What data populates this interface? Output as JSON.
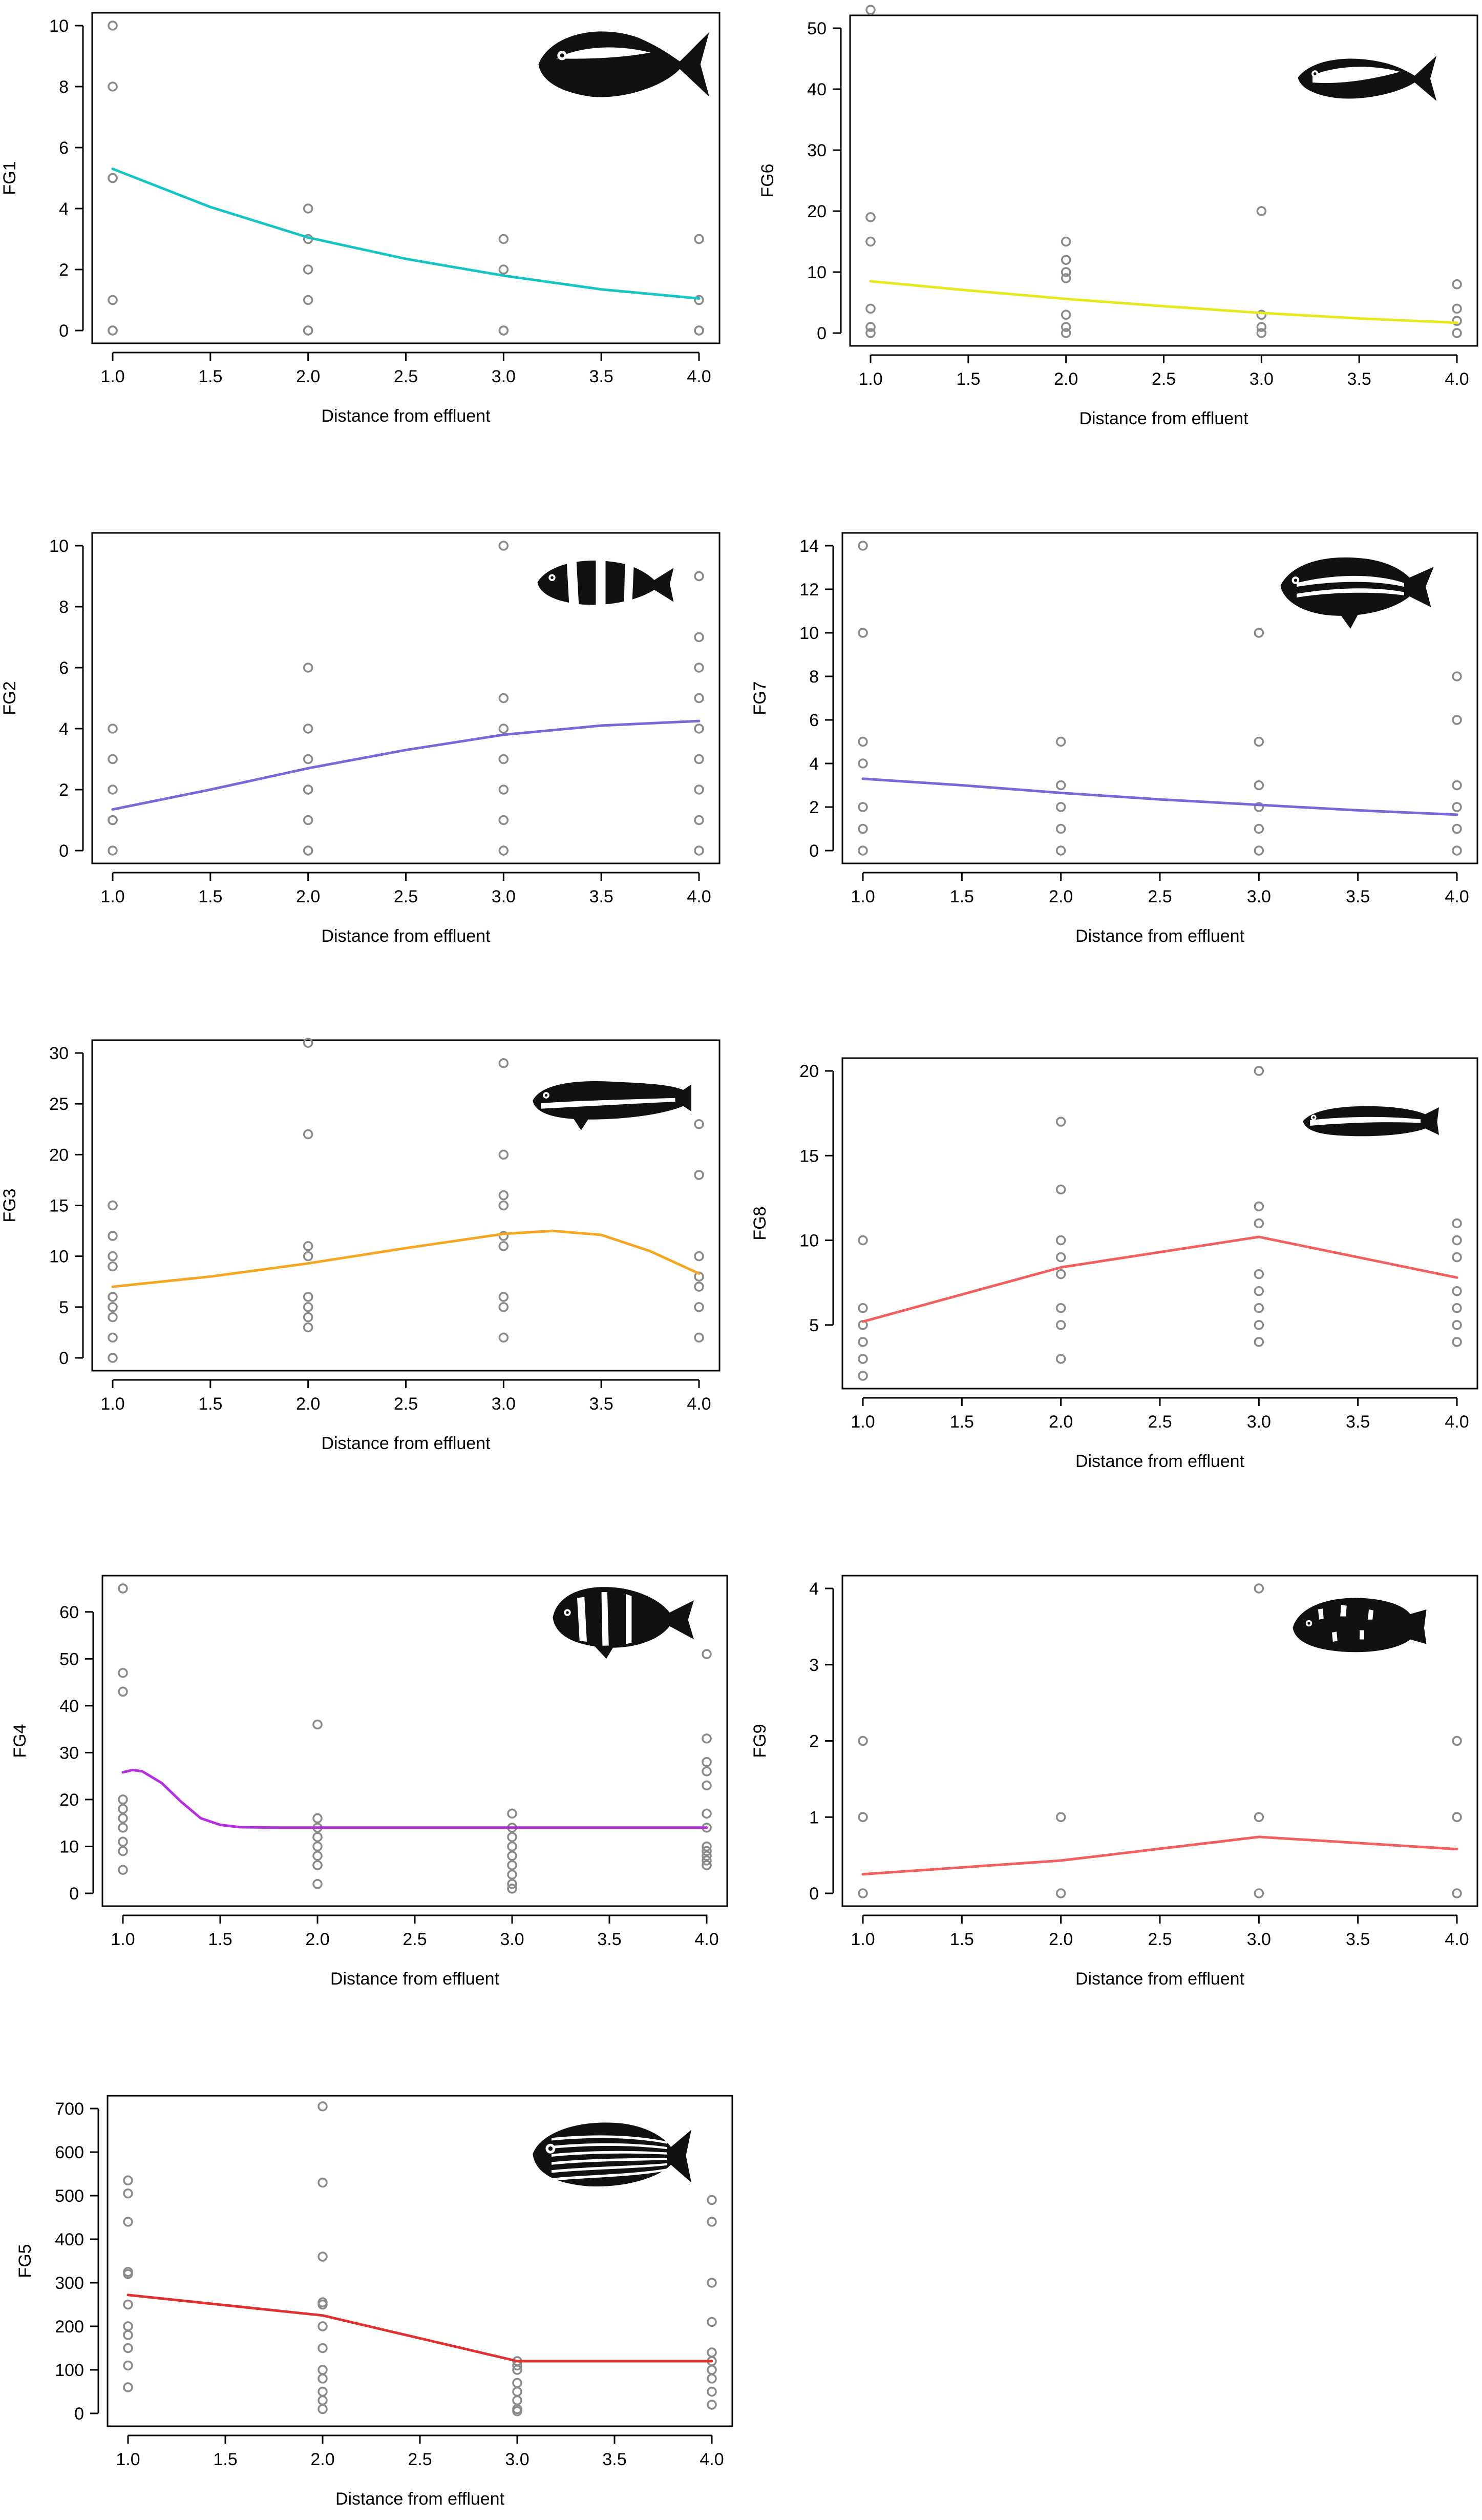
{
  "chart_data": [
    {
      "id": "FG1",
      "type": "scatter",
      "title": "",
      "xlabel": "Distance from effluent",
      "ylabel": "FG1",
      "xlim": [
        1,
        4
      ],
      "ylim": [
        0,
        10
      ],
      "xticks": [
        1.0,
        1.5,
        2.0,
        2.5,
        3.0,
        3.5,
        4.0
      ],
      "yticks": [
        0,
        2,
        4,
        6,
        8,
        10
      ],
      "points": [
        [
          1,
          10
        ],
        [
          1,
          8
        ],
        [
          1,
          5
        ],
        [
          1,
          5
        ],
        [
          1,
          1
        ],
        [
          1,
          0
        ],
        [
          1,
          0
        ],
        [
          2,
          4
        ],
        [
          2,
          3
        ],
        [
          2,
          2
        ],
        [
          2,
          1
        ],
        [
          2,
          0
        ],
        [
          2,
          0
        ],
        [
          3,
          3
        ],
        [
          3,
          2
        ],
        [
          3,
          0
        ],
        [
          3,
          0
        ],
        [
          4,
          3
        ],
        [
          4,
          1
        ],
        [
          4,
          0
        ],
        [
          4,
          0
        ]
      ],
      "fit": {
        "x": [
          1.0,
          1.5,
          2.0,
          2.5,
          3.0,
          3.5,
          4.0
        ],
        "y": [
          5.3,
          4.05,
          3.05,
          2.35,
          1.8,
          1.35,
          1.05
        ]
      },
      "fit_color": "#17c4c4",
      "fish": "jack"
    },
    {
      "id": "FG6",
      "type": "scatter",
      "title": "",
      "xlabel": "Distance from effluent",
      "ylabel": "FG6",
      "xlim": [
        1,
        4
      ],
      "ylim": [
        0,
        50
      ],
      "xticks": [
        1.0,
        1.5,
        2.0,
        2.5,
        3.0,
        3.5,
        4.0
      ],
      "yticks": [
        0,
        10,
        20,
        30,
        40,
        50
      ],
      "points": [
        [
          1,
          53
        ],
        [
          1,
          19
        ],
        [
          1,
          15
        ],
        [
          1,
          4
        ],
        [
          1,
          1
        ],
        [
          1,
          0
        ],
        [
          2,
          15
        ],
        [
          2,
          12
        ],
        [
          2,
          10
        ],
        [
          2,
          9
        ],
        [
          2,
          3
        ],
        [
          2,
          1
        ],
        [
          2,
          0
        ],
        [
          3,
          20
        ],
        [
          3,
          3
        ],
        [
          3,
          1
        ],
        [
          3,
          0
        ],
        [
          4,
          8
        ],
        [
          4,
          4
        ],
        [
          4,
          2
        ],
        [
          4,
          0
        ]
      ],
      "fit": {
        "x": [
          1.0,
          1.5,
          2.0,
          2.5,
          3.0,
          3.5,
          4.0
        ],
        "y": [
          8.5,
          7.0,
          5.6,
          4.4,
          3.3,
          2.4,
          1.7
        ]
      },
      "fit_color": "#e8e820",
      "fish": "bream"
    },
    {
      "id": "FG2",
      "type": "scatter",
      "title": "",
      "xlabel": "Distance from effluent",
      "ylabel": "FG2",
      "xlim": [
        1,
        4
      ],
      "ylim": [
        0,
        10
      ],
      "xticks": [
        1.0,
        1.5,
        2.0,
        2.5,
        3.0,
        3.5,
        4.0
      ],
      "yticks": [
        0,
        2,
        4,
        6,
        8,
        10
      ],
      "points": [
        [
          1,
          4
        ],
        [
          1,
          3
        ],
        [
          1,
          2
        ],
        [
          1,
          1
        ],
        [
          1,
          1
        ],
        [
          1,
          0
        ],
        [
          2,
          6
        ],
        [
          2,
          4
        ],
        [
          2,
          3
        ],
        [
          2,
          2
        ],
        [
          2,
          2
        ],
        [
          2,
          1
        ],
        [
          2,
          0
        ],
        [
          3,
          10
        ],
        [
          3,
          5
        ],
        [
          3,
          4
        ],
        [
          3,
          3
        ],
        [
          3,
          2
        ],
        [
          3,
          1
        ],
        [
          3,
          0
        ],
        [
          4,
          9
        ],
        [
          4,
          7
        ],
        [
          4,
          6
        ],
        [
          4,
          5
        ],
        [
          4,
          4
        ],
        [
          4,
          3
        ],
        [
          4,
          2
        ],
        [
          4,
          1
        ],
        [
          4,
          0
        ]
      ],
      "fit": {
        "x": [
          1.0,
          1.5,
          2.0,
          2.5,
          3.0,
          3.5,
          4.0
        ],
        "y": [
          1.35,
          2.0,
          2.7,
          3.3,
          3.8,
          4.1,
          4.25
        ]
      },
      "fit_color": "#7b68d8",
      "fish": "banded"
    },
    {
      "id": "FG7",
      "type": "scatter",
      "title": "",
      "xlabel": "Distance from effluent",
      "ylabel": "FG7",
      "xlim": [
        1,
        4
      ],
      "ylim": [
        0,
        14
      ],
      "xticks": [
        1.0,
        1.5,
        2.0,
        2.5,
        3.0,
        3.5,
        4.0
      ],
      "yticks": [
        0,
        2,
        4,
        6,
        8,
        10,
        12,
        14
      ],
      "points": [
        [
          1,
          14
        ],
        [
          1,
          10
        ],
        [
          1,
          5
        ],
        [
          1,
          4
        ],
        [
          1,
          2
        ],
        [
          1,
          1
        ],
        [
          1,
          0
        ],
        [
          2,
          5
        ],
        [
          2,
          3
        ],
        [
          2,
          2
        ],
        [
          2,
          1
        ],
        [
          2,
          0
        ],
        [
          3,
          10
        ],
        [
          3,
          5
        ],
        [
          3,
          3
        ],
        [
          3,
          2
        ],
        [
          3,
          1
        ],
        [
          3,
          0
        ],
        [
          4,
          8
        ],
        [
          4,
          6
        ],
        [
          4,
          3
        ],
        [
          4,
          2
        ],
        [
          4,
          1
        ],
        [
          4,
          0
        ]
      ],
      "fit": {
        "x": [
          1.0,
          1.5,
          2.0,
          2.5,
          3.0,
          3.5,
          4.0
        ],
        "y": [
          3.3,
          3.0,
          2.65,
          2.35,
          2.1,
          1.85,
          1.65
        ]
      },
      "fit_color": "#7b68d8",
      "fish": "snapper"
    },
    {
      "id": "FG3",
      "type": "scatter",
      "title": "",
      "xlabel": "Distance from effluent",
      "ylabel": "FG3",
      "xlim": [
        1,
        4
      ],
      "ylim": [
        0,
        30
      ],
      "xticks": [
        1.0,
        1.5,
        2.0,
        2.5,
        3.0,
        3.5,
        4.0
      ],
      "yticks": [
        0,
        5,
        10,
        15,
        20,
        25,
        30
      ],
      "points": [
        [
          1,
          15
        ],
        [
          1,
          12
        ],
        [
          1,
          10
        ],
        [
          1,
          9
        ],
        [
          1,
          6
        ],
        [
          1,
          5
        ],
        [
          1,
          4
        ],
        [
          1,
          2
        ],
        [
          1,
          0
        ],
        [
          2,
          31
        ],
        [
          2,
          22
        ],
        [
          2,
          11
        ],
        [
          2,
          10
        ],
        [
          2,
          6
        ],
        [
          2,
          5
        ],
        [
          2,
          4
        ],
        [
          2,
          3
        ],
        [
          3,
          29
        ],
        [
          3,
          20
        ],
        [
          3,
          16
        ],
        [
          3,
          15
        ],
        [
          3,
          12
        ],
        [
          3,
          11
        ],
        [
          3,
          6
        ],
        [
          3,
          5
        ],
        [
          3,
          2
        ],
        [
          4,
          23
        ],
        [
          4,
          18
        ],
        [
          4,
          10
        ],
        [
          4,
          8
        ],
        [
          4,
          7
        ],
        [
          4,
          5
        ],
        [
          4,
          2
        ]
      ],
      "fit": {
        "x": [
          1.0,
          1.5,
          2.0,
          2.5,
          3.0,
          3.25,
          3.5,
          3.75,
          4.0
        ],
        "y": [
          7.0,
          8.0,
          9.3,
          10.8,
          12.2,
          12.5,
          12.1,
          10.5,
          8.3
        ]
      },
      "fit_color": "#f5a623",
      "fish": "lizard"
    },
    {
      "id": "FG8",
      "type": "scatter",
      "title": "",
      "xlabel": "Distance from effluent",
      "ylabel": "FG8",
      "xlim": [
        1,
        4
      ],
      "ylim": [
        2,
        20
      ],
      "xticks": [
        1.0,
        1.5,
        2.0,
        2.5,
        3.0,
        3.5,
        4.0
      ],
      "yticks": [
        5,
        10,
        15,
        20
      ],
      "points": [
        [
          1,
          10
        ],
        [
          1,
          6
        ],
        [
          1,
          5
        ],
        [
          1,
          4
        ],
        [
          1,
          3
        ],
        [
          1,
          2
        ],
        [
          2,
          17
        ],
        [
          2,
          13
        ],
        [
          2,
          10
        ],
        [
          2,
          9
        ],
        [
          2,
          8
        ],
        [
          2,
          6
        ],
        [
          2,
          5
        ],
        [
          2,
          3
        ],
        [
          3,
          20
        ],
        [
          3,
          12
        ],
        [
          3,
          11
        ],
        [
          3,
          8
        ],
        [
          3,
          7
        ],
        [
          3,
          6
        ],
        [
          3,
          5
        ],
        [
          3,
          4
        ],
        [
          4,
          11
        ],
        [
          4,
          10
        ],
        [
          4,
          9
        ],
        [
          4,
          7
        ],
        [
          4,
          6
        ],
        [
          4,
          5
        ],
        [
          4,
          4
        ]
      ],
      "fit": {
        "x": [
          1.0,
          2.0,
          3.0,
          4.0
        ],
        "y": [
          5.2,
          8.4,
          10.2,
          7.8
        ]
      },
      "fit_color": "#f06060",
      "fish": "wrasse"
    },
    {
      "id": "FG4",
      "type": "scatter",
      "title": "",
      "xlabel": "Distance from effluent",
      "ylabel": "FG4",
      "xlim": [
        1,
        4
      ],
      "ylim": [
        0,
        65
      ],
      "xticks": [
        1.0,
        1.5,
        2.0,
        2.5,
        3.0,
        3.5,
        4.0
      ],
      "yticks": [
        0,
        10,
        20,
        30,
        40,
        50,
        60
      ],
      "points": [
        [
          1,
          65
        ],
        [
          1,
          47
        ],
        [
          1,
          43
        ],
        [
          1,
          20
        ],
        [
          1,
          18
        ],
        [
          1,
          16
        ],
        [
          1,
          14
        ],
        [
          1,
          11
        ],
        [
          1,
          9
        ],
        [
          1,
          5
        ],
        [
          2,
          36
        ],
        [
          2,
          16
        ],
        [
          2,
          14
        ],
        [
          2,
          12
        ],
        [
          2,
          10
        ],
        [
          2,
          8
        ],
        [
          2,
          6
        ],
        [
          2,
          2
        ],
        [
          3,
          17
        ],
        [
          3,
          14
        ],
        [
          3,
          12
        ],
        [
          3,
          10
        ],
        [
          3,
          8
        ],
        [
          3,
          6
        ],
        [
          3,
          4
        ],
        [
          3,
          2
        ],
        [
          3,
          1
        ],
        [
          4,
          51
        ],
        [
          4,
          33
        ],
        [
          4,
          28
        ],
        [
          4,
          26
        ],
        [
          4,
          23
        ],
        [
          4,
          17
        ],
        [
          4,
          14
        ],
        [
          4,
          10
        ],
        [
          4,
          9
        ],
        [
          4,
          8
        ],
        [
          4,
          7
        ],
        [
          4,
          6
        ]
      ],
      "fit": {
        "x": [
          1.0,
          1.05,
          1.1,
          1.2,
          1.3,
          1.4,
          1.5,
          1.6,
          1.8,
          2.0,
          2.5,
          3.0,
          3.5,
          4.0
        ],
        "y": [
          25.8,
          26.3,
          26.0,
          23.5,
          19.5,
          16.0,
          14.6,
          14.1,
          14.0,
          14.0,
          14.0,
          14.0,
          14.0,
          14.0
        ]
      },
      "fit_color": "#b52ee0",
      "fish": "porgy"
    },
    {
      "id": "FG9",
      "type": "scatter",
      "title": "",
      "xlabel": "Distance from effluent",
      "ylabel": "FG9",
      "xlim": [
        1,
        4
      ],
      "ylim": [
        0,
        4
      ],
      "xticks": [
        1.0,
        1.5,
        2.0,
        2.5,
        3.0,
        3.5,
        4.0
      ],
      "yticks": [
        0,
        1,
        2,
        3,
        4
      ],
      "points": [
        [
          1,
          2
        ],
        [
          1,
          1
        ],
        [
          1,
          0
        ],
        [
          2,
          1
        ],
        [
          2,
          0
        ],
        [
          3,
          4
        ],
        [
          3,
          1
        ],
        [
          3,
          0
        ],
        [
          4,
          2
        ],
        [
          4,
          1
        ],
        [
          4,
          0
        ]
      ],
      "fit": {
        "x": [
          1.0,
          2.0,
          3.0,
          4.0
        ],
        "y": [
          0.25,
          0.43,
          0.74,
          0.58
        ]
      },
      "fit_color": "#f06060",
      "fish": "scorpion"
    },
    {
      "id": "FG5",
      "type": "scatter",
      "title": "",
      "xlabel": "Distance from effluent",
      "ylabel": "FG5",
      "xlim": [
        1,
        4
      ],
      "ylim": [
        0,
        700
      ],
      "xticks": [
        1.0,
        1.5,
        2.0,
        2.5,
        3.0,
        3.5,
        4.0
      ],
      "yticks": [
        0,
        100,
        200,
        300,
        400,
        500,
        600,
        700
      ],
      "points": [
        [
          1,
          535
        ],
        [
          1,
          505
        ],
        [
          1,
          440
        ],
        [
          1,
          325
        ],
        [
          1,
          320
        ],
        [
          1,
          250
        ],
        [
          1,
          200
        ],
        [
          1,
          180
        ],
        [
          1,
          150
        ],
        [
          1,
          110
        ],
        [
          1,
          60
        ],
        [
          2,
          705
        ],
        [
          2,
          530
        ],
        [
          2,
          360
        ],
        [
          2,
          255
        ],
        [
          2,
          250
        ],
        [
          2,
          200
        ],
        [
          2,
          150
        ],
        [
          2,
          100
        ],
        [
          2,
          80
        ],
        [
          2,
          50
        ],
        [
          2,
          30
        ],
        [
          2,
          10
        ],
        [
          3,
          120
        ],
        [
          3,
          110
        ],
        [
          3,
          100
        ],
        [
          3,
          70
        ],
        [
          3,
          50
        ],
        [
          3,
          30
        ],
        [
          3,
          10
        ],
        [
          3,
          5
        ],
        [
          4,
          490
        ],
        [
          4,
          440
        ],
        [
          4,
          300
        ],
        [
          4,
          210
        ],
        [
          4,
          140
        ],
        [
          4,
          120
        ],
        [
          4,
          100
        ],
        [
          4,
          80
        ],
        [
          4,
          50
        ],
        [
          4,
          20
        ]
      ],
      "fit": {
        "x": [
          1.0,
          2.0,
          3.0,
          4.0
        ],
        "y": [
          272,
          225,
          120,
          120
        ]
      },
      "fit_color": "#e03030",
      "fish": "soldier"
    }
  ]
}
